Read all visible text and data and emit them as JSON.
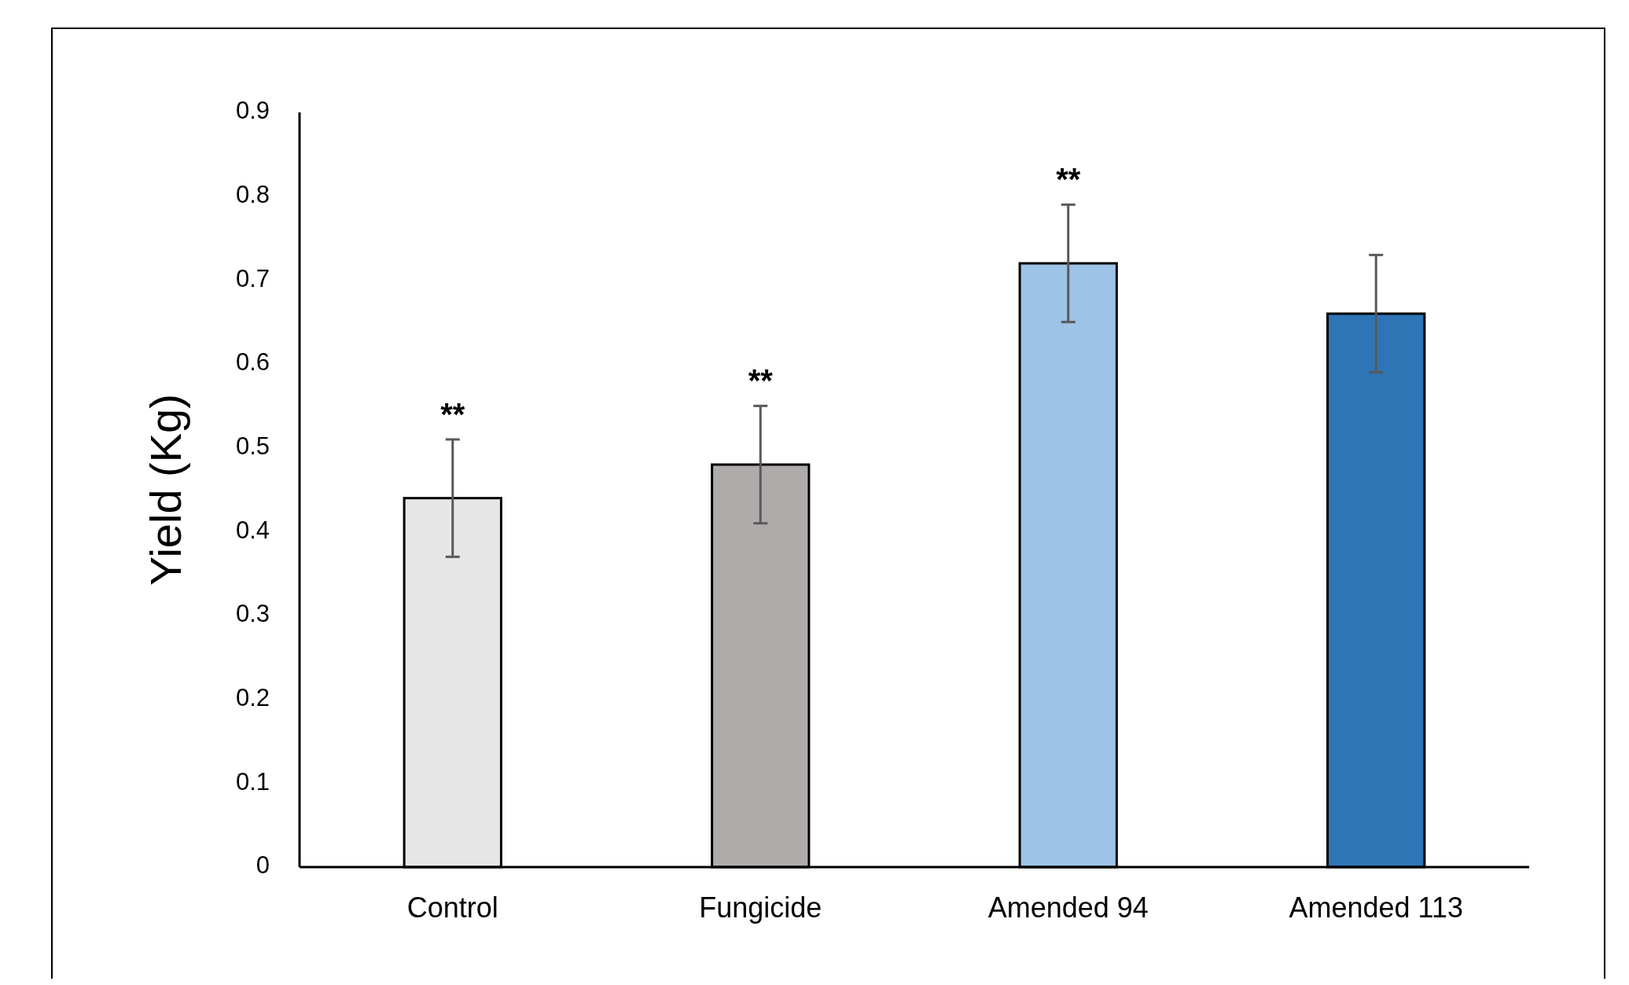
{
  "chart_data": {
    "type": "bar",
    "ylabel": "Yield (Kg)",
    "categories": [
      "Control",
      "Fungicide",
      "Amended 94",
      "Amended 113"
    ],
    "values": [
      0.44,
      0.48,
      0.72,
      0.66
    ],
    "colors": [
      "#e6e6e6",
      "#afabab",
      "#9dc3e6",
      "#2e75b6"
    ],
    "errors": [
      0.07,
      0.07,
      0.07,
      0.07
    ],
    "ylim": [
      0,
      0.9
    ],
    "yticks": [
      0,
      0.1,
      0.2,
      0.3,
      0.4,
      0.5,
      0.6,
      0.7,
      0.8,
      0.9
    ],
    "grid": false,
    "annotations": [
      "**",
      "**",
      "**"
    ]
  }
}
